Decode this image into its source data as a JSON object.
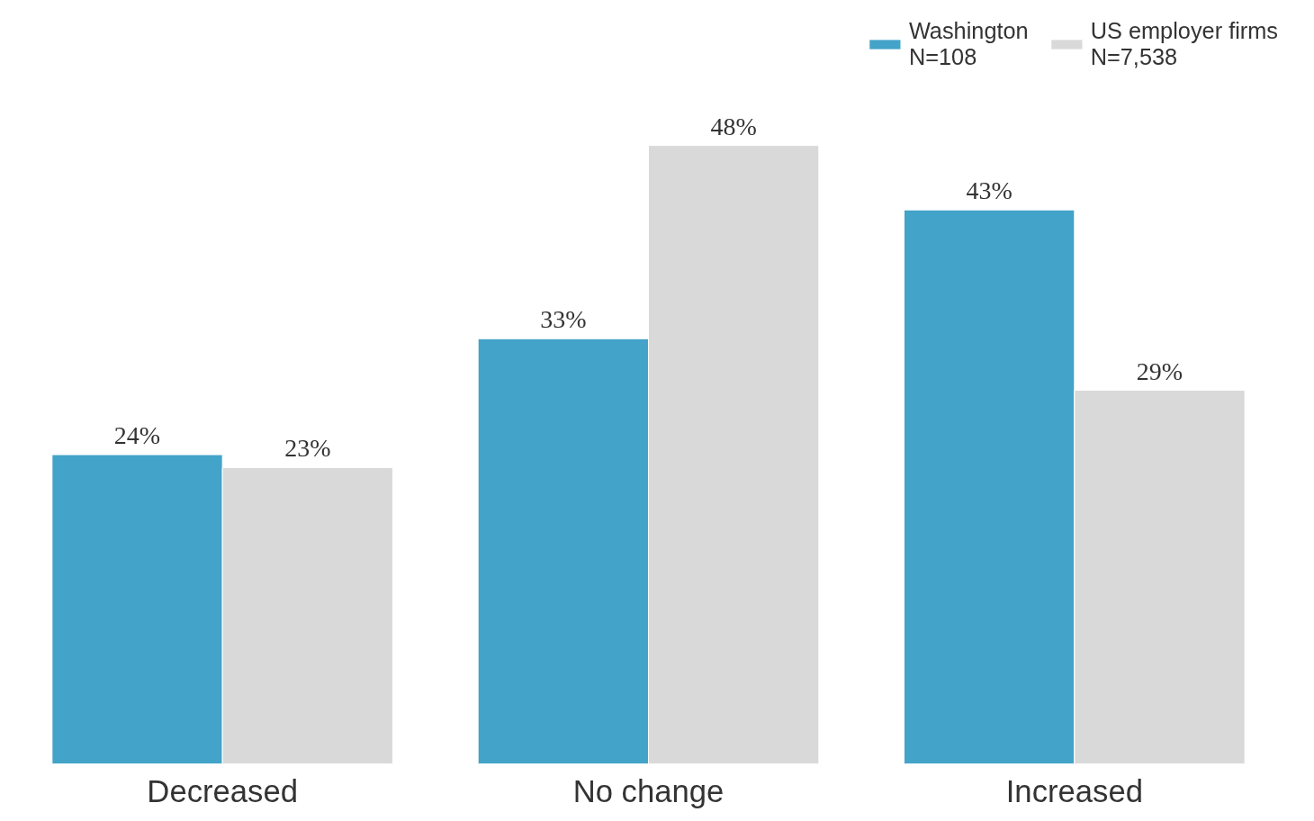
{
  "chart_data": {
    "type": "bar",
    "categories": [
      "Decreased",
      "No change",
      "Increased"
    ],
    "series": [
      {
        "name": "Washington\nN=108",
        "color": "#43a3c8",
        "values": [
          24,
          33,
          43
        ],
        "value_labels": [
          "24%",
          "33%",
          "43%"
        ]
      },
      {
        "name": "US employer firms\nN=7,538",
        "color": "#d9d9d9",
        "values": [
          23,
          48,
          29
        ],
        "value_labels": [
          "23%",
          "48%",
          "29%"
        ]
      }
    ],
    "legend": "top right",
    "grid": false,
    "tick_labels": "x"
  }
}
